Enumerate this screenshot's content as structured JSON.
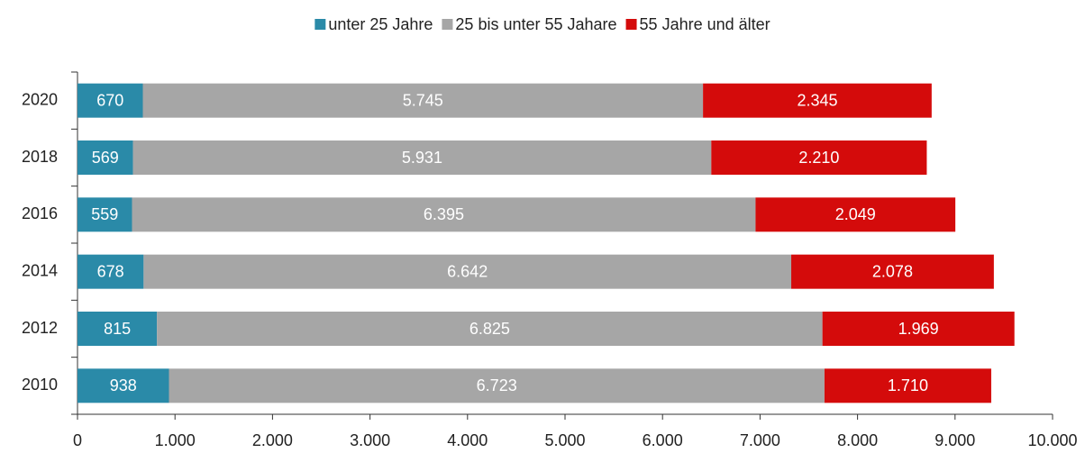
{
  "chart_data": {
    "type": "stacked-bar-horizontal",
    "categories": [
      "2020",
      "2018",
      "2016",
      "2014",
      "2012",
      "2010"
    ],
    "series": [
      {
        "name": "unter 25 Jahre",
        "color": "#2a8aa8",
        "values": [
          670,
          569,
          559,
          678,
          815,
          938
        ],
        "value_labels": [
          "670",
          "569",
          "559",
          "678",
          "815",
          "938"
        ]
      },
      {
        "name": "25 bis unter 55 Jahare",
        "color": "#a6a6a6",
        "values": [
          5745,
          5931,
          6395,
          6642,
          6825,
          6723
        ],
        "value_labels": [
          "5.745",
          "5.931",
          "6.395",
          "6.642",
          "6.825",
          "6.723"
        ]
      },
      {
        "name": "55 Jahre und älter",
        "color": "#d40b0b",
        "values": [
          2345,
          2210,
          2049,
          2078,
          1969,
          1710
        ],
        "value_labels": [
          "2.345",
          "2.210",
          "2.049",
          "2.078",
          "1.969",
          "1.710"
        ]
      }
    ],
    "xlim": [
      0,
      10000
    ],
    "xticks": [
      0,
      {
        "value": 1000,
        "label": "1.000"
      },
      {
        "value": 2000,
        "label": "2.000"
      },
      {
        "value": 3000,
        "label": "3.000"
      },
      {
        "value": 4000,
        "label": "4.000"
      },
      {
        "value": 5000,
        "label": "5.000"
      },
      {
        "value": 6000,
        "label": "6.000"
      },
      {
        "value": 7000,
        "label": "7.000"
      },
      {
        "value": 8000,
        "label": "8.000"
      },
      {
        "value": 9000,
        "label": "9.000"
      },
      {
        "value": 10000,
        "label": "10.000"
      }
    ],
    "legend": "top"
  }
}
